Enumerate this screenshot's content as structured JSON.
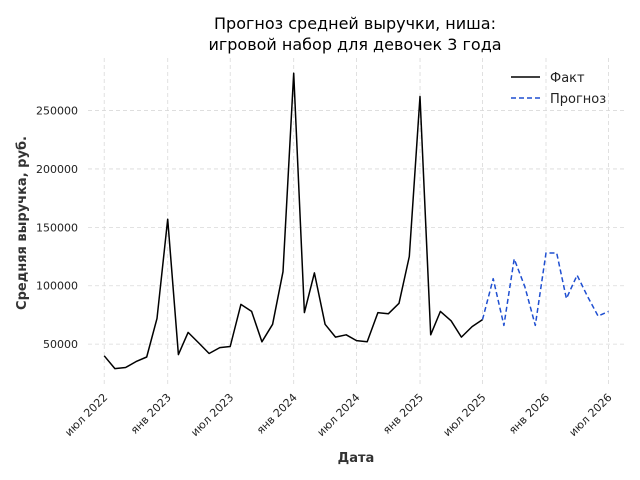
{
  "chart_data": {
    "type": "line",
    "title_lines": [
      "Прогноз средней выручки, ниша:",
      "игровой набор для девочек 3 года"
    ],
    "xlabel": "Дата",
    "ylabel": "Средняя выручка, руб.",
    "x_ticks": [
      {
        "date": "2022-07",
        "label": "июл 2022"
      },
      {
        "date": "2023-01",
        "label": "янв 2023"
      },
      {
        "date": "2023-07",
        "label": "июл 2023"
      },
      {
        "date": "2024-01",
        "label": "янв 2024"
      },
      {
        "date": "2024-07",
        "label": "июл 2024"
      },
      {
        "date": "2025-01",
        "label": "янв 2025"
      },
      {
        "date": "2025-07",
        "label": "июл 2025"
      },
      {
        "date": "2026-01",
        "label": "янв 2026"
      },
      {
        "date": "2026-07",
        "label": "июл 2026"
      }
    ],
    "y_ticks": [
      50000,
      100000,
      150000,
      200000,
      250000
    ],
    "y_tick_labels": [
      "50000",
      "100000",
      "150000",
      "200000",
      "250000"
    ],
    "xlim": [
      "2022-05-15",
      "2026-08-15"
    ],
    "ylim": [
      15000,
      295000
    ],
    "grid": true,
    "legend_position": "top-right",
    "series": [
      {
        "name": "Факт",
        "color": "#000000",
        "style": "solid",
        "x": [
          "2022-07",
          "2022-08",
          "2022-09",
          "2022-10",
          "2022-11",
          "2022-12",
          "2023-01",
          "2023-02",
          "2023-03",
          "2023-04",
          "2023-05",
          "2023-06",
          "2023-07",
          "2023-08",
          "2023-09",
          "2023-10",
          "2023-11",
          "2023-12",
          "2024-01",
          "2024-02",
          "2024-03",
          "2024-04",
          "2024-05",
          "2024-06",
          "2024-07",
          "2024-08",
          "2024-09",
          "2024-10",
          "2024-11",
          "2024-12",
          "2025-01",
          "2025-02",
          "2025-03",
          "2025-04",
          "2025-05",
          "2025-06",
          "2025-07"
        ],
        "y": [
          40000,
          29000,
          30000,
          35000,
          39000,
          72000,
          157000,
          41000,
          60000,
          51000,
          42000,
          47000,
          48000,
          84000,
          78000,
          52000,
          67000,
          112000,
          282000,
          77000,
          111000,
          67000,
          56000,
          58000,
          53000,
          52000,
          77000,
          76000,
          85000,
          125000,
          262000,
          58000,
          78000,
          70000,
          56000,
          65000,
          71000
        ]
      },
      {
        "name": "Прогноз",
        "color": "#1f4fd1",
        "style": "dashed",
        "x": [
          "2025-07",
          "2025-08",
          "2025-09",
          "2025-10",
          "2025-11",
          "2025-12",
          "2026-01",
          "2026-02",
          "2026-03",
          "2026-04",
          "2026-05",
          "2026-06",
          "2026-07"
        ],
        "y": [
          71000,
          106000,
          66000,
          123000,
          99000,
          66000,
          128000,
          128000,
          89000,
          109000,
          91000,
          74000,
          78000
        ]
      }
    ]
  }
}
